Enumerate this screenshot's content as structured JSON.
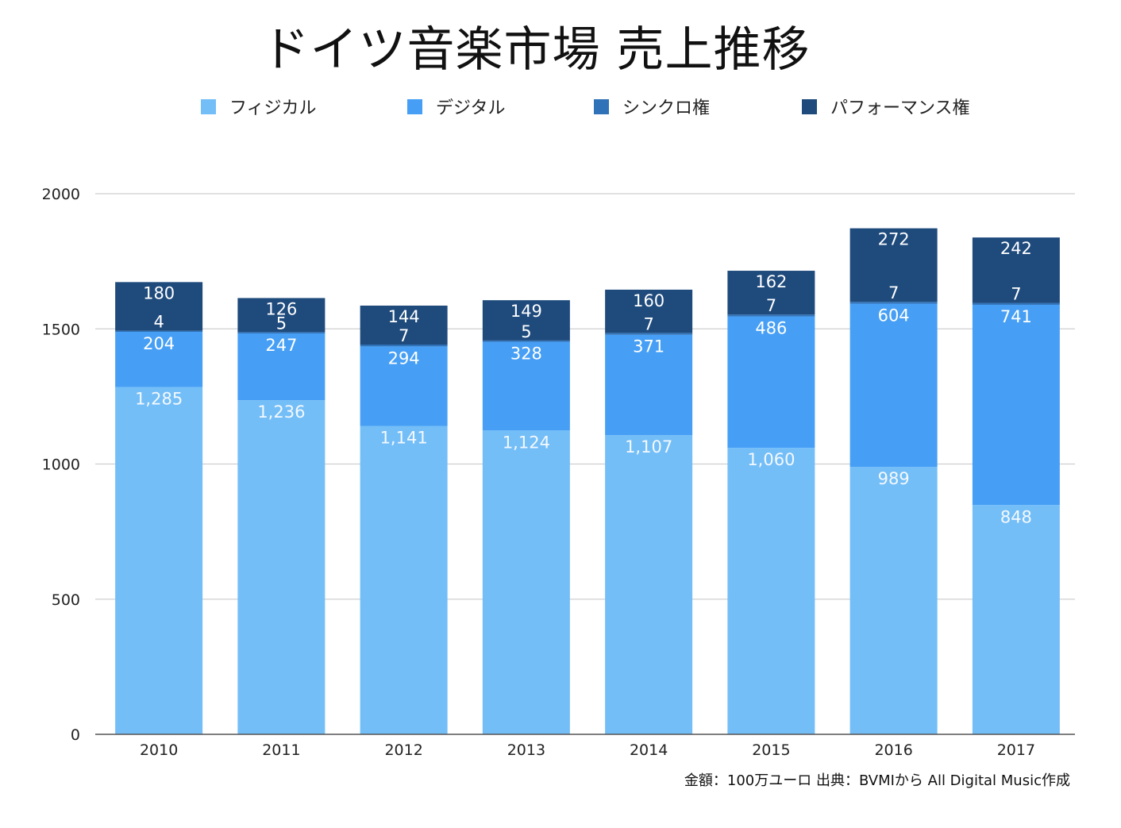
{
  "chart_data": {
    "type": "bar",
    "stacked": true,
    "title": "ドイツ音楽市場 売上推移",
    "categories": [
      "2010",
      "2011",
      "2012",
      "2013",
      "2014",
      "2015",
      "2016",
      "2017"
    ],
    "series": [
      {
        "name": "フィジカル",
        "color": "#74BEF7",
        "values": [
          1285,
          1236,
          1141,
          1124,
          1107,
          1060,
          989,
          848
        ],
        "labels": [
          "1,285",
          "1,236",
          "1,141",
          "1,124",
          "1,107",
          "1,060",
          "989",
          "848"
        ]
      },
      {
        "name": "デジタル",
        "color": "#469FF5",
        "values": [
          204,
          247,
          294,
          328,
          371,
          486,
          604,
          741
        ],
        "labels": [
          "204",
          "247",
          "294",
          "328",
          "371",
          "486",
          "604",
          "741"
        ]
      },
      {
        "name": "シンクロ権",
        "color": "#2F72B8",
        "values": [
          4,
          5,
          7,
          5,
          7,
          7,
          7,
          7
        ],
        "labels": [
          "4",
          "5",
          "7",
          "5",
          "7",
          "7",
          "7",
          "7"
        ]
      },
      {
        "name": "パフォーマンス権",
        "color": "#1E4A7C",
        "values": [
          180,
          126,
          144,
          149,
          160,
          162,
          272,
          242
        ],
        "labels": [
          "180",
          "126",
          "144",
          "149",
          "160",
          "162",
          "272",
          "242"
        ]
      }
    ],
    "ylim": [
      0,
      2000
    ],
    "yticks": [
      0,
      500,
      1000,
      1500,
      2000
    ],
    "grid": true,
    "legend_position": "top",
    "note": "金額：100万ユーロ 出典：BVMIから All Digital Music作成"
  }
}
